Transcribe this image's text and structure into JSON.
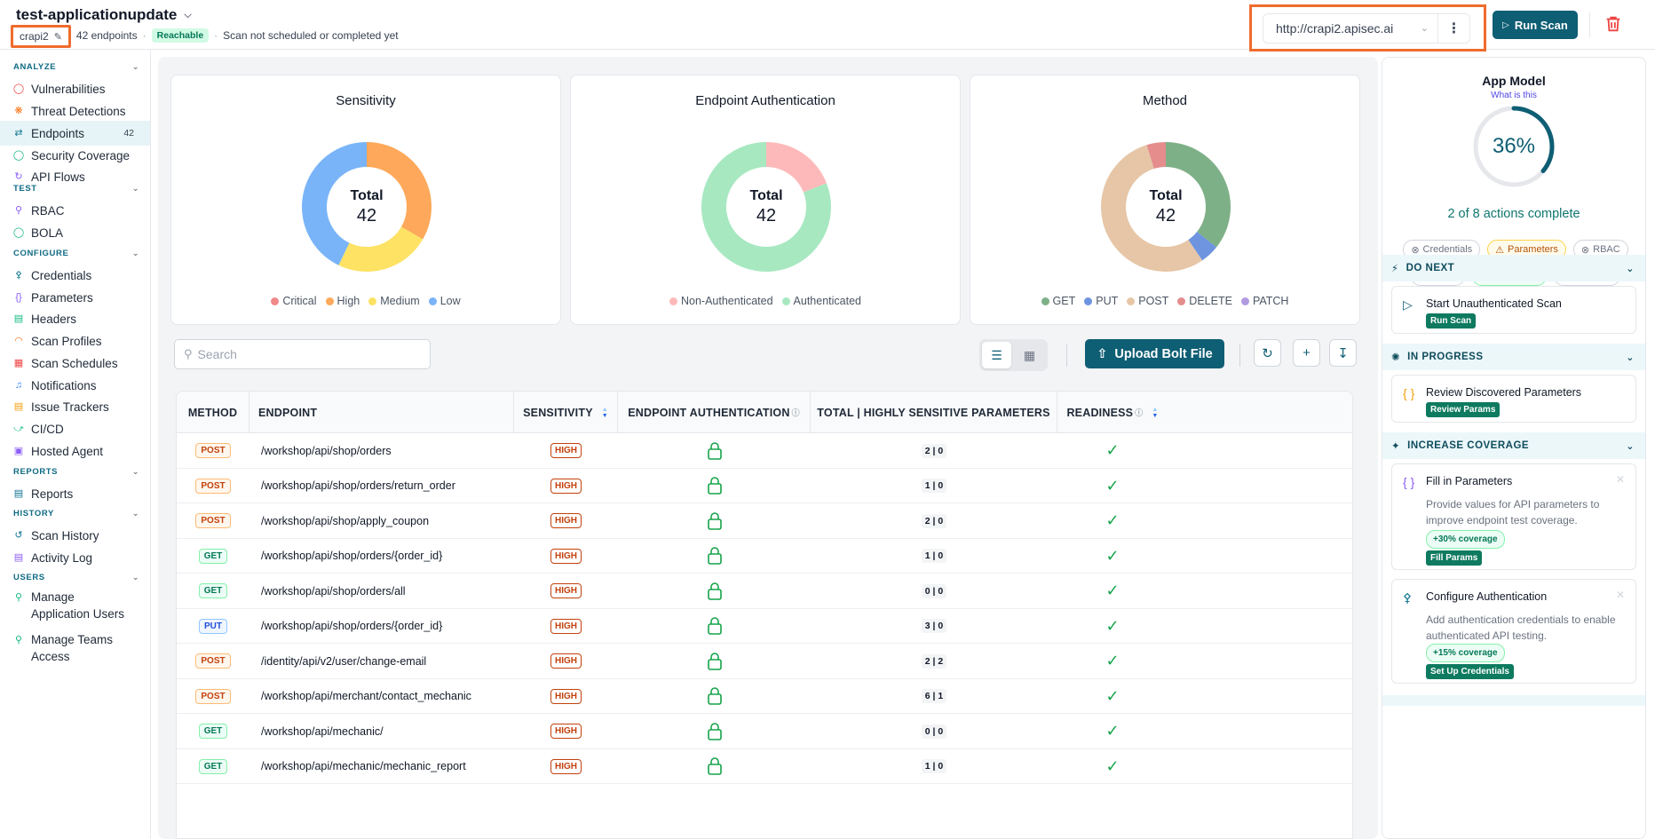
{
  "header": {
    "app_title": "test-applicationupdate",
    "app_name": "crapi2",
    "endpoint_count": "42 endpoints",
    "reachable_badge": "Reachable",
    "scan_status": "Scan not scheduled or completed yet",
    "url": "http://crapi2.apisec.ai",
    "run_scan": "Run Scan"
  },
  "sidebar": {
    "analyze": {
      "heading": "ANALYZE",
      "items": [
        {
          "label": "Vulnerabilities",
          "icon": "shield-alert-icon"
        },
        {
          "label": "Threat Detections",
          "icon": "radar-icon"
        },
        {
          "label": "Endpoints",
          "icon": "endpoints-icon",
          "count": "42"
        },
        {
          "label": "Security Coverage",
          "icon": "shield-check-icon"
        },
        {
          "label": "API Flows",
          "icon": "flow-icon"
        }
      ]
    },
    "test": {
      "heading": "TEST",
      "items": [
        {
          "label": "RBAC",
          "icon": "user-key-icon"
        },
        {
          "label": "BOLA",
          "icon": "shield-icon"
        }
      ]
    },
    "configure": {
      "heading": "CONFIGURE",
      "items": [
        {
          "label": "Credentials",
          "icon": "key-icon"
        },
        {
          "label": "Parameters",
          "icon": "braces-icon"
        },
        {
          "label": "Headers",
          "icon": "headers-icon"
        },
        {
          "label": "Scan Profiles",
          "icon": "gauge-icon"
        },
        {
          "label": "Scan Schedules",
          "icon": "calendar-icon"
        },
        {
          "label": "Notifications",
          "icon": "bell-icon"
        },
        {
          "label": "Issue Trackers",
          "icon": "tracker-icon"
        },
        {
          "label": "CI/CD",
          "icon": "cicd-icon"
        },
        {
          "label": "Hosted Agent",
          "icon": "agent-icon"
        }
      ]
    },
    "reports": {
      "heading": "REPORTS",
      "items": [
        {
          "label": "Reports",
          "icon": "report-icon"
        }
      ]
    },
    "history": {
      "heading": "HISTORY",
      "items": [
        {
          "label": "Scan History",
          "icon": "history-icon"
        },
        {
          "label": "Activity Log",
          "icon": "log-icon"
        }
      ]
    },
    "users": {
      "heading": "USERS",
      "items": [
        {
          "label1": "Manage",
          "label2": "Application Users",
          "icon": "users-icon"
        },
        {
          "label1": "Manage Teams",
          "label2": "Access",
          "icon": "team-icon"
        }
      ]
    }
  },
  "charts": {
    "sensitivity": {
      "title": "Sensitivity",
      "center_label": "Total",
      "center_value": "42",
      "legend": [
        {
          "label": "Critical",
          "color": "#f08a8a"
        },
        {
          "label": "High",
          "color": "#fda85a"
        },
        {
          "label": "Medium",
          "color": "#fde264"
        },
        {
          "label": "Low",
          "color": "#79b4f8"
        }
      ]
    },
    "auth": {
      "title": "Endpoint Authentication",
      "center_label": "Total",
      "center_value": "42",
      "legend": [
        {
          "label": "Non-Authenticated",
          "color": "#fdb9b9"
        },
        {
          "label": "Authenticated",
          "color": "#a7e8c0"
        }
      ]
    },
    "method": {
      "title": "Method",
      "center_label": "Total",
      "center_value": "42",
      "legend": [
        {
          "label": "GET",
          "color": "#7eb087"
        },
        {
          "label": "PUT",
          "color": "#6e94e0"
        },
        {
          "label": "POST",
          "color": "#e6c6a6"
        },
        {
          "label": "DELETE",
          "color": "#e58d8d"
        },
        {
          "label": "PATCH",
          "color": "#b29ae0"
        }
      ]
    }
  },
  "chart_data": [
    {
      "type": "pie",
      "title": "Sensitivity",
      "categories": [
        "Critical",
        "High",
        "Medium",
        "Low"
      ],
      "values": [
        0,
        14,
        10,
        18
      ]
    },
    {
      "type": "pie",
      "title": "Endpoint Authentication",
      "categories": [
        "Non-Authenticated",
        "Authenticated"
      ],
      "values": [
        8,
        34
      ]
    },
    {
      "type": "pie",
      "title": "Method",
      "categories": [
        "GET",
        "PUT",
        "POST",
        "DELETE",
        "PATCH"
      ],
      "values": [
        15,
        2,
        23,
        2,
        0
      ]
    }
  ],
  "toolbar": {
    "search_placeholder": "Search",
    "upload_label": "Upload Bolt File"
  },
  "table": {
    "headers": {
      "method": "METHOD",
      "endpoint": "ENDPOINT",
      "sensitivity": "SENSITIVITY",
      "auth": "ENDPOINT AUTHENTICATION",
      "params": "TOTAL | HIGHLY SENSITIVE PARAMETERS",
      "readiness": "READINESS"
    },
    "rows": [
      {
        "method": "POST",
        "endpoint": "/workshop/api/shop/orders",
        "sensitivity": "HIGH",
        "params": "2 | 0"
      },
      {
        "method": "POST",
        "endpoint": "/workshop/api/shop/orders/return_order",
        "sensitivity": "HIGH",
        "params": "1 | 0"
      },
      {
        "method": "POST",
        "endpoint": "/workshop/api/shop/apply_coupon",
        "sensitivity": "HIGH",
        "params": "2 | 0"
      },
      {
        "method": "GET",
        "endpoint": "/workshop/api/shop/orders/{order_id}",
        "sensitivity": "HIGH",
        "params": "1 | 0"
      },
      {
        "method": "GET",
        "endpoint": "/workshop/api/shop/orders/all",
        "sensitivity": "HIGH",
        "params": "0 | 0"
      },
      {
        "method": "PUT",
        "endpoint": "/workshop/api/shop/orders/{order_id}",
        "sensitivity": "HIGH",
        "params": "3 | 0"
      },
      {
        "method": "POST",
        "endpoint": "/identity/api/v2/user/change-email",
        "sensitivity": "HIGH",
        "params": "2 | 2"
      },
      {
        "method": "POST",
        "endpoint": "/workshop/api/merchant/contact_mechanic",
        "sensitivity": "HIGH",
        "params": "6 | 1"
      },
      {
        "method": "GET",
        "endpoint": "/workshop/api/mechanic/",
        "sensitivity": "HIGH",
        "params": "0 | 0"
      },
      {
        "method": "GET",
        "endpoint": "/workshop/api/mechanic/mechanic_report",
        "sensitivity": "HIGH",
        "params": "1 | 0"
      }
    ]
  },
  "app_model": {
    "title": "App Model",
    "link": "What is this",
    "progress": 0.36,
    "progress_label": "36%",
    "summary": "2 of 8 actions complete",
    "chips": [
      {
        "label": "Credentials",
        "state": "none"
      },
      {
        "label": "Parameters",
        "state": "warn"
      },
      {
        "label": "RBAC",
        "state": "none"
      },
      {
        "label": "BOLA",
        "state": "none"
      },
      {
        "label": "Reachable",
        "state": "ok"
      },
      {
        "label": "Scanned",
        "state": "none"
      }
    ],
    "do_next": {
      "heading": "DO NEXT",
      "task": "Start Unauthenticated Scan",
      "button": "Run Scan"
    },
    "in_progress": {
      "heading": "IN PROGRESS",
      "task": "Review Discovered Parameters",
      "button": "Review Params"
    },
    "increase_coverage": {
      "heading": "INCREASE COVERAGE",
      "tasks": [
        {
          "title": "Fill in Parameters",
          "desc": "Provide values for API parameters to improve endpoint test coverage.",
          "coverage": "+30% coverage",
          "button": "Fill Params"
        },
        {
          "title": "Configure Authentication",
          "desc": "Add authentication credentials to enable authenticated API testing.",
          "coverage": "+15% coverage",
          "button": "Set Up Credentials"
        }
      ]
    }
  }
}
